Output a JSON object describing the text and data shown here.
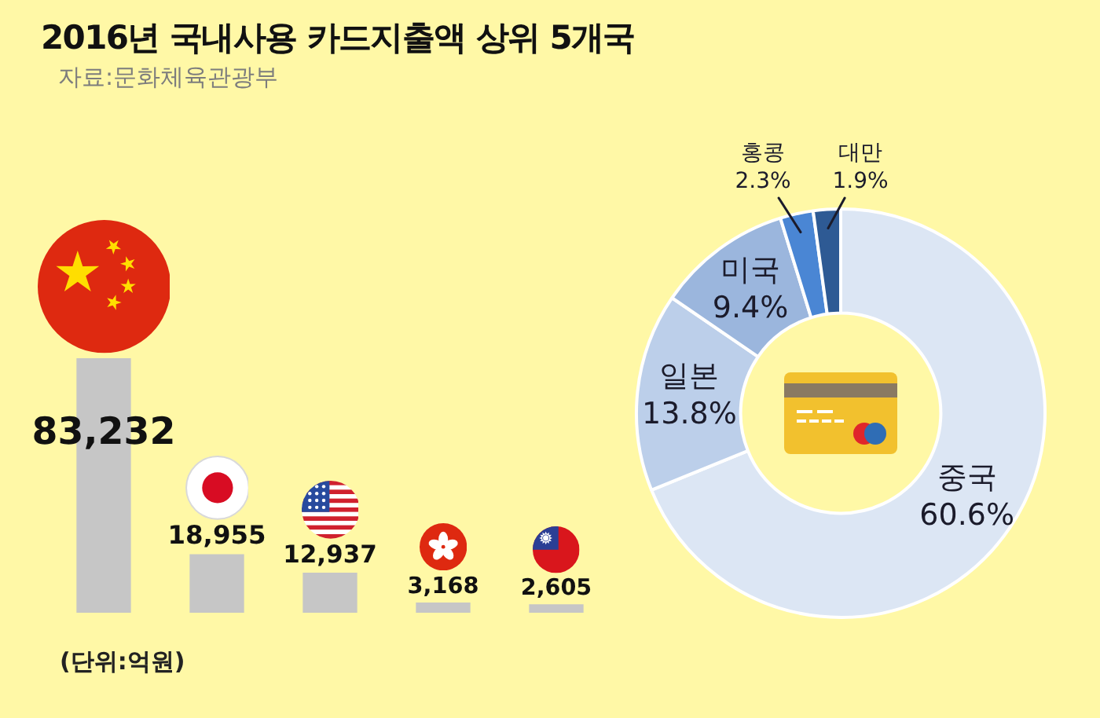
{
  "chart_data": [
    {
      "type": "bar",
      "title": "2016년 국내사용 카드지출액 상위 5개국",
      "annotations": [
        "자료:문화체육관광부",
        "(단위:억원)"
      ],
      "categories": [
        null,
        null,
        null,
        null,
        null
      ],
      "values": [
        83232,
        18955,
        12937,
        3168,
        2605
      ],
      "value_labels": [
        "83,232",
        "18,955",
        "12,937",
        "3,168",
        "2,605"
      ],
      "color": "#c6c6c6",
      "tick_labels": false
    },
    {
      "type": "donut",
      "categories": [
        "중국",
        "일본",
        "미국",
        "홍콩",
        "대만"
      ],
      "values": [
        60.6,
        13.8,
        9.4,
        2.3,
        1.9
      ],
      "value_labels": [
        "60.6%",
        "13.8%",
        "9.4%",
        "2.3%",
        "1.9%"
      ],
      "colors": [
        "#dce6f4",
        "#bccfea",
        "#9bb6dd",
        "#4a86d4",
        "#2e5a94"
      ]
    }
  ]
}
